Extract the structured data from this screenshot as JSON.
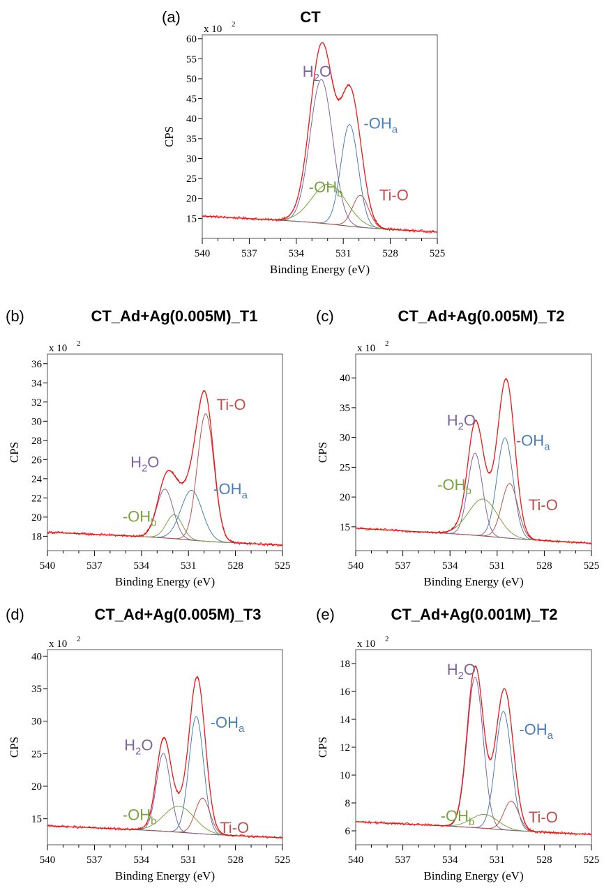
{
  "chart_data": [
    {
      "type": "line",
      "panel_label": "(a)",
      "title": "CT",
      "xlabel": "Binding Energy (eV)",
      "ylabel": "CPS",
      "scale_label": "x 10",
      "scale_exp": "2",
      "xlim": [
        540,
        525
      ],
      "ylim": [
        10,
        61
      ],
      "xticks": [
        540,
        537,
        534,
        531,
        528,
        525
      ],
      "yticks": [
        15,
        20,
        25,
        30,
        35,
        40,
        45,
        50,
        55,
        60
      ],
      "bg_left": 15.2,
      "bg_right": 12.0,
      "bg_step": 2.0,
      "noise": 0.35,
      "components": [
        {
          "name": "H2O",
          "center": 532.4,
          "height": 36.0,
          "fwhm": 1.7,
          "label_main": "H",
          "label_sub": "2",
          "label_tail": "O",
          "color": "#8064a2",
          "label_x": 533.6,
          "label_y": 50.5
        },
        {
          "name": "-OHa",
          "center": 530.6,
          "height": 25.5,
          "fwhm": 1.3,
          "label_main": "-OH",
          "label_sub": "a",
          "label_tail": "",
          "color": "#4a7ebb",
          "label_x": 529.7,
          "label_y": 37.5
        },
        {
          "name": "-OHb",
          "center": 531.9,
          "height": 10.0,
          "fwhm": 2.6,
          "label_main": "-OH",
          "label_sub": "b",
          "label_tail": "",
          "color": "#77a33c",
          "label_x": 533.2,
          "label_y": 21.5
        },
        {
          "name": "Ti-O",
          "center": 529.9,
          "height": 8.0,
          "fwhm": 1.2,
          "label_main": "Ti-O",
          "label_sub": "",
          "label_tail": "",
          "color": "#c0504d",
          "label_x": 528.7,
          "label_y": 19.5
        }
      ]
    },
    {
      "type": "line",
      "panel_label": "(b)",
      "title": "CT_Ad+Ag(0.005M)_T1",
      "xlabel": "Binding Energy (eV)",
      "ylabel": "CPS",
      "scale_label": "x 10",
      "scale_exp": "2",
      "xlim": [
        540,
        525
      ],
      "ylim": [
        16.5,
        37
      ],
      "xticks": [
        540,
        537,
        534,
        531,
        528,
        525
      ],
      "yticks": [
        18,
        20,
        22,
        24,
        26,
        28,
        30,
        32,
        34,
        36
      ],
      "bg_left": 18.3,
      "bg_right": 17.2,
      "bg_step": 0.6,
      "noise": 0.15,
      "components": [
        {
          "name": "H2O",
          "center": 532.5,
          "height": 5.1,
          "fwhm": 1.25,
          "label_main": "H",
          "label_sub": "2",
          "label_tail": "O",
          "color": "#8064a2",
          "label_x": 534.7,
          "label_y": 25.2
        },
        {
          "name": "-OHa",
          "center": 530.8,
          "height": 5.2,
          "fwhm": 1.6,
          "label_main": "-OH",
          "label_sub": "a",
          "label_tail": "",
          "color": "#4a7ebb",
          "label_x": 529.4,
          "label_y": 22.4
        },
        {
          "name": "-OHb",
          "center": 531.9,
          "height": 2.5,
          "fwhm": 1.2,
          "label_main": "-OH",
          "label_sub": "b",
          "label_tail": "",
          "color": "#77a33c",
          "label_x": 535.2,
          "label_y": 19.5
        },
        {
          "name": "Ti-O",
          "center": 529.9,
          "height": 13.3,
          "fwhm": 1.25,
          "label_main": "Ti-O",
          "label_sub": "",
          "label_tail": "",
          "color": "#c0504d",
          "label_x": 529.2,
          "label_y": 31.2
        }
      ]
    },
    {
      "type": "line",
      "panel_label": "(c)",
      "title": "CT_Ad+Ag(0.005M)_T2",
      "xlabel": "Binding Energy (eV)",
      "ylabel": "CPS",
      "scale_label": "x 10",
      "scale_exp": "2",
      "xlim": [
        540,
        525
      ],
      "ylim": [
        11,
        44
      ],
      "xticks": [
        540,
        537,
        534,
        531,
        528,
        525
      ],
      "yticks": [
        15,
        20,
        25,
        30,
        35,
        40
      ],
      "bg_left": 14.6,
      "bg_right": 12.4,
      "bg_step": 0.8,
      "noise": 0.2,
      "components": [
        {
          "name": "H2O",
          "center": 532.4,
          "height": 13.8,
          "fwhm": 1.1,
          "label_main": "H",
          "label_sub": "2",
          "label_tail": "O",
          "color": "#8064a2",
          "label_x": 534.2,
          "label_y": 32.0
        },
        {
          "name": "-OHa",
          "center": 530.5,
          "height": 16.8,
          "fwhm": 1.2,
          "label_main": "-OH",
          "label_sub": "a",
          "label_tail": "",
          "color": "#4a7ebb",
          "label_x": 529.8,
          "label_y": 28.6
        },
        {
          "name": "-OHb",
          "center": 531.9,
          "height": 6.2,
          "fwhm": 2.2,
          "label_main": "-OH",
          "label_sub": "b",
          "label_tail": "",
          "color": "#77a33c",
          "label_x": 534.8,
          "label_y": 21.2
        },
        {
          "name": "Ti-O",
          "center": 530.2,
          "height": 9.2,
          "fwhm": 1.2,
          "label_main": "Ti-O",
          "label_sub": "",
          "label_tail": "",
          "color": "#c0504d",
          "label_x": 529.0,
          "label_y": 17.8
        }
      ]
    },
    {
      "type": "line",
      "panel_label": "(d)",
      "title": "CT_Ad+Ag(0.005M)_T3",
      "xlabel": "Binding Energy (eV)",
      "ylabel": "CPS",
      "scale_label": "x 10",
      "scale_exp": "2",
      "xlim": [
        540,
        525
      ],
      "ylim": [
        11,
        41
      ],
      "xticks": [
        540,
        537,
        534,
        531,
        528,
        525
      ],
      "yticks": [
        15,
        20,
        25,
        30,
        35,
        40
      ],
      "bg_left": 13.8,
      "bg_right": 12.2,
      "bg_step": 0.6,
      "noise": 0.2,
      "components": [
        {
          "name": "H2O",
          "center": 532.6,
          "height": 12.0,
          "fwhm": 1.05,
          "label_main": "H",
          "label_sub": "2",
          "label_tail": "O",
          "color": "#8064a2",
          "label_x": 535.1,
          "label_y": 25.5
        },
        {
          "name": "-OHa",
          "center": 530.5,
          "height": 18.0,
          "fwhm": 1.1,
          "label_main": "-OH",
          "label_sub": "a",
          "label_tail": "",
          "color": "#4a7ebb",
          "label_x": 529.6,
          "label_y": 29.0
        },
        {
          "name": "-OHb",
          "center": 531.6,
          "height": 4.0,
          "fwhm": 2.3,
          "label_main": "-OH",
          "label_sub": "b",
          "label_tail": "",
          "color": "#77a33c",
          "label_x": 535.2,
          "label_y": 14.8
        },
        {
          "name": "Ti-O",
          "center": 530.1,
          "height": 5.5,
          "fwhm": 1.1,
          "label_main": "Ti-O",
          "label_sub": "",
          "label_tail": "",
          "color": "#c0504d",
          "label_x": 529.0,
          "label_y": 12.8
        }
      ]
    },
    {
      "type": "line",
      "panel_label": "(e)",
      "title": "CT_Ad+Ag(0.001M)_T2",
      "xlabel": "Binding Energy (eV)",
      "ylabel": "CPS",
      "scale_label": "x 10",
      "scale_exp": "2",
      "xlim": [
        540,
        525
      ],
      "ylim": [
        5,
        19
      ],
      "xticks": [
        540,
        537,
        534,
        531,
        528,
        525
      ],
      "yticks": [
        6,
        8,
        10,
        12,
        14,
        16,
        18
      ],
      "bg_left": 6.6,
      "bg_right": 5.8,
      "bg_step": 0.3,
      "noise": 0.1,
      "components": [
        {
          "name": "H2O",
          "center": 532.4,
          "height": 10.8,
          "fwhm": 1.2,
          "label_main": "H",
          "label_sub": "2",
          "label_tail": "O",
          "color": "#8064a2",
          "label_x": 534.2,
          "label_y": 17.2
        },
        {
          "name": "-OHa",
          "center": 530.6,
          "height": 8.5,
          "fwhm": 1.2,
          "label_main": "-OH",
          "label_sub": "a",
          "label_tail": "",
          "color": "#4a7ebb",
          "label_x": 529.6,
          "label_y": 12.9
        },
        {
          "name": "-OHb",
          "center": 531.8,
          "height": 1.0,
          "fwhm": 2.0,
          "label_main": "-OH",
          "label_sub": "b",
          "label_tail": "",
          "color": "#77a33c",
          "label_x": 534.6,
          "label_y": 6.7
        },
        {
          "name": "Ti-O",
          "center": 530.1,
          "height": 2.1,
          "fwhm": 1.1,
          "label_main": "Ti-O",
          "label_sub": "",
          "label_tail": "",
          "color": "#c0504d",
          "label_x": 529.0,
          "label_y": 6.6
        }
      ]
    }
  ]
}
